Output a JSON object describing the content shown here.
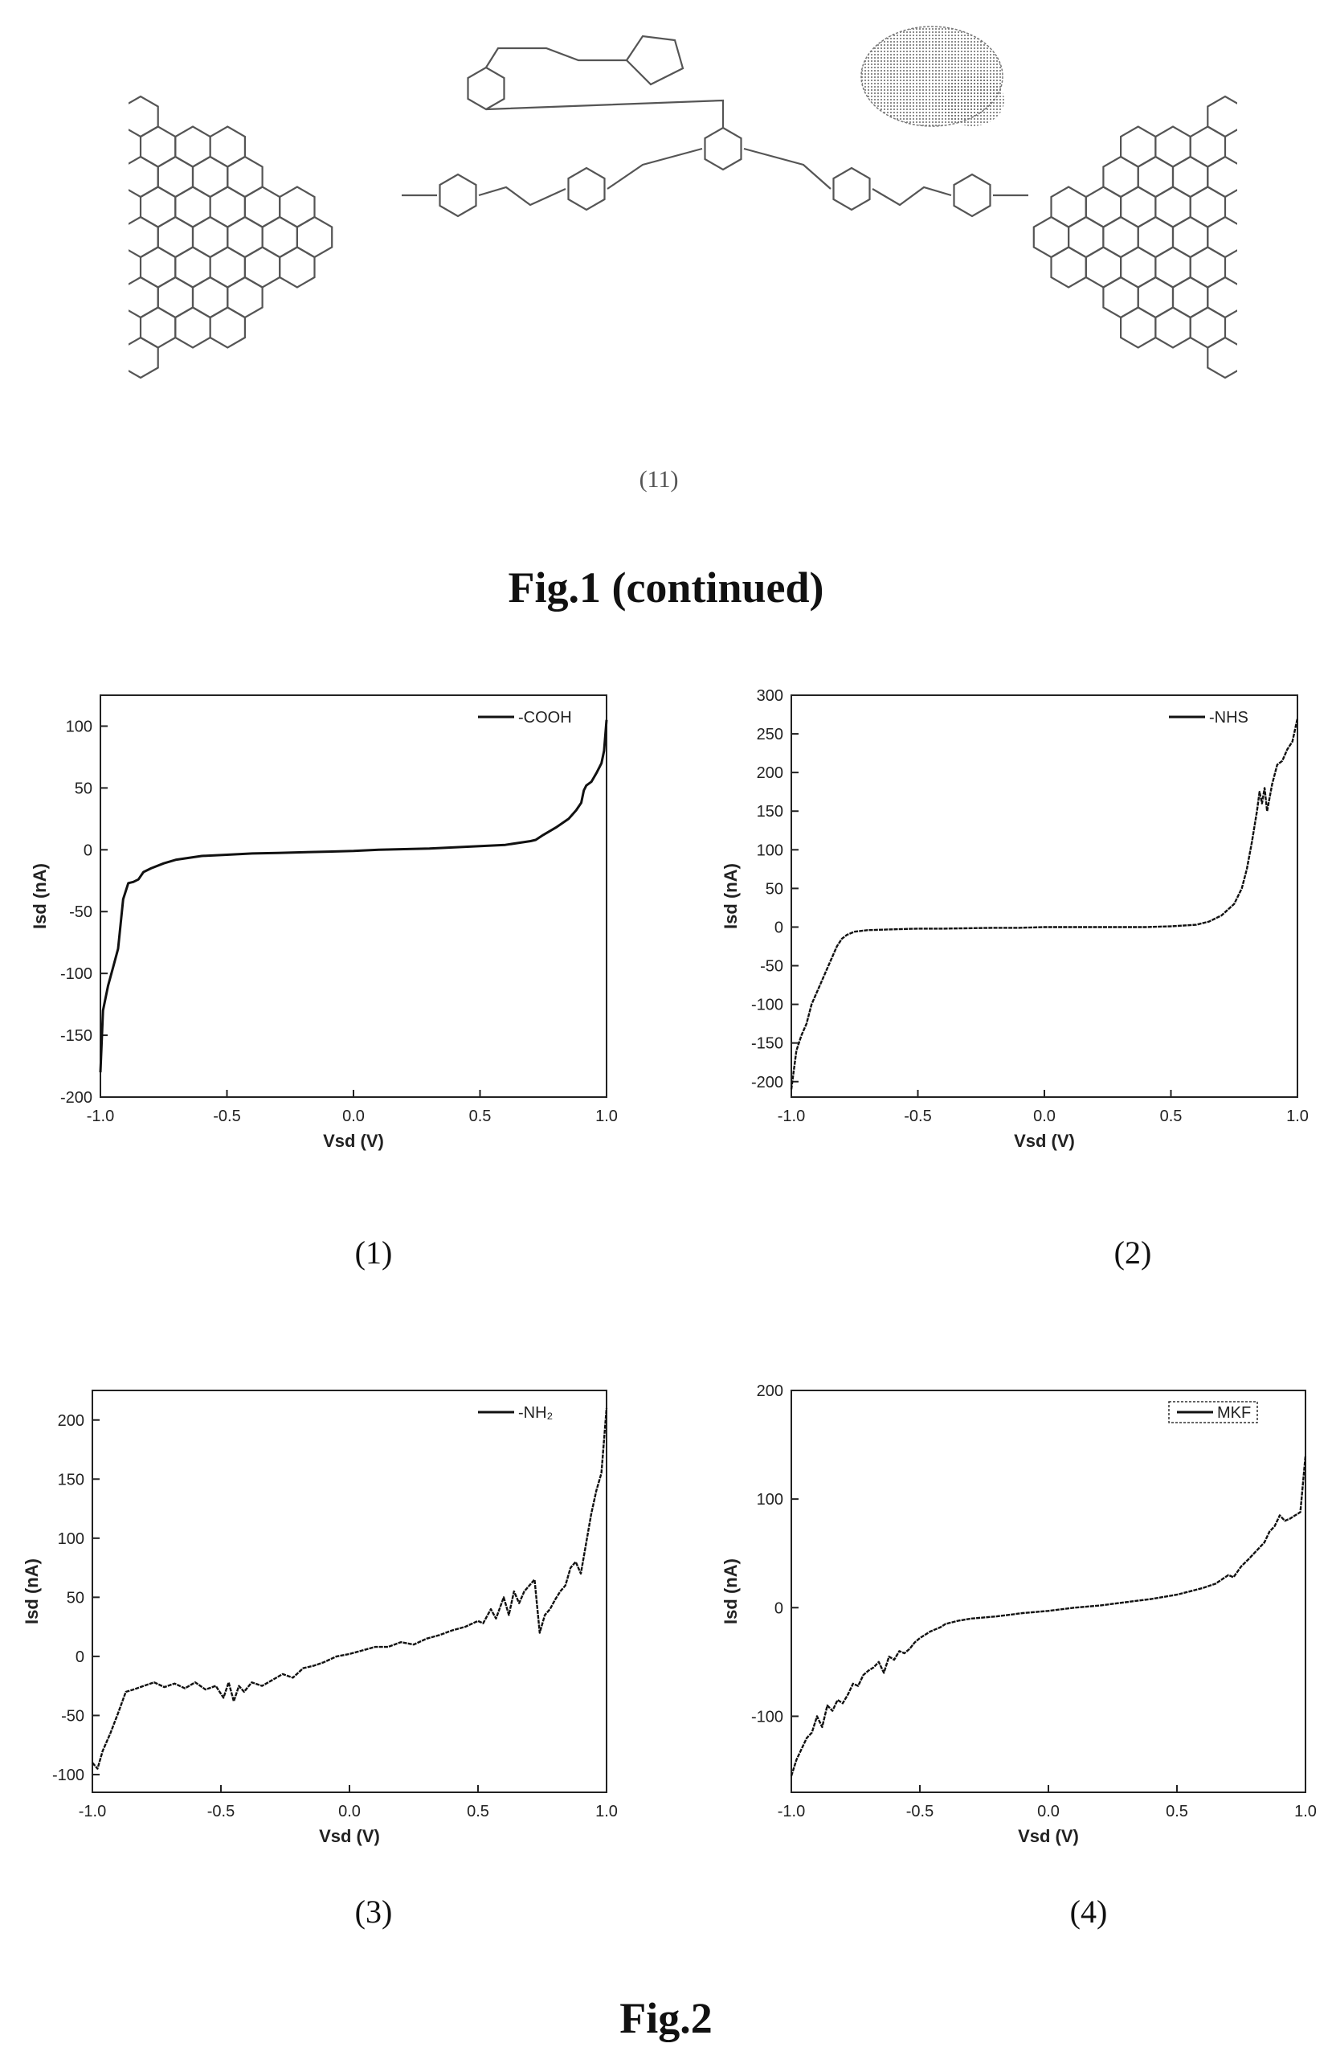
{
  "top_figure": {
    "compound_label": "(11)",
    "caption": "Fig.1 (continued)"
  },
  "bottom_figure": {
    "caption": "Fig.2"
  },
  "chart_data": [
    {
      "panel_label": "(1)",
      "type": "line",
      "xlabel": "Vsd (V)",
      "ylabel": "Isd (nA)",
      "xlim": [
        -1.0,
        1.0
      ],
      "ylim": [
        -200,
        125
      ],
      "xticks": [
        "-1.0",
        "-0.5",
        "0.0",
        "0.5",
        "1.0"
      ],
      "xtick_values": [
        -1.0,
        -0.5,
        0.0,
        0.5,
        1.0
      ],
      "yticks": [
        "-200",
        "-150",
        "-100",
        "-50",
        "0",
        "50",
        "100"
      ],
      "ytick_values": [
        -200,
        -150,
        -100,
        -50,
        0,
        50,
        100
      ],
      "legend_position": "top-right",
      "series": [
        {
          "name": "-COOH",
          "x": [
            -1.0,
            -0.99,
            -0.97,
            -0.95,
            -0.93,
            -0.91,
            -0.89,
            -0.87,
            -0.85,
            -0.83,
            -0.8,
            -0.75,
            -0.7,
            -0.6,
            -0.5,
            -0.4,
            -0.3,
            -0.2,
            -0.1,
            0.0,
            0.1,
            0.2,
            0.3,
            0.4,
            0.5,
            0.6,
            0.7,
            0.72,
            0.75,
            0.8,
            0.85,
            0.88,
            0.9,
            0.91,
            0.92,
            0.94,
            0.96,
            0.98,
            0.99,
            1.0
          ],
          "y": [
            -180,
            -130,
            -110,
            -95,
            -80,
            -40,
            -27,
            -26,
            -24,
            -18,
            -15,
            -11,
            -8,
            -5,
            -4,
            -3,
            -2.5,
            -2,
            -1.5,
            -1,
            0,
            0.5,
            1,
            2,
            3,
            4,
            7,
            8,
            12,
            18,
            25,
            32,
            38,
            48,
            52,
            55,
            62,
            70,
            80,
            105
          ]
        }
      ]
    },
    {
      "panel_label": "(2)",
      "type": "line",
      "xlabel": "Vsd (V)",
      "ylabel": "Isd (nA)",
      "xlim": [
        -1.0,
        1.0
      ],
      "ylim": [
        -220,
        300
      ],
      "xticks": [
        "-1.0",
        "-0.5",
        "0.0",
        "0.5",
        "1.0"
      ],
      "xtick_values": [
        -1.0,
        -0.5,
        0.0,
        0.5,
        1.0
      ],
      "yticks": [
        "-200",
        "-150",
        "-100",
        "-50",
        "0",
        "50",
        "100",
        "150",
        "200",
        "250",
        "300"
      ],
      "ytick_values": [
        -200,
        -150,
        -100,
        -50,
        0,
        50,
        100,
        150,
        200,
        250,
        300
      ],
      "legend_position": "top-right",
      "series": [
        {
          "name": "-NHS",
          "x": [
            -1.0,
            -0.98,
            -0.96,
            -0.94,
            -0.92,
            -0.9,
            -0.88,
            -0.86,
            -0.84,
            -0.82,
            -0.8,
            -0.78,
            -0.75,
            -0.7,
            -0.6,
            -0.5,
            -0.4,
            -0.3,
            -0.2,
            -0.1,
            0.0,
            0.1,
            0.2,
            0.3,
            0.4,
            0.5,
            0.6,
            0.65,
            0.7,
            0.75,
            0.78,
            0.8,
            0.82,
            0.84,
            0.85,
            0.86,
            0.87,
            0.88,
            0.9,
            0.92,
            0.94,
            0.96,
            0.98,
            1.0
          ],
          "y": [
            -210,
            -160,
            -140,
            -125,
            -100,
            -85,
            -70,
            -55,
            -40,
            -25,
            -15,
            -10,
            -6,
            -4,
            -3,
            -2,
            -2,
            -1.5,
            -1,
            -1,
            0,
            0,
            0,
            0,
            0,
            1,
            3,
            7,
            15,
            30,
            50,
            75,
            110,
            150,
            175,
            160,
            180,
            150,
            185,
            210,
            215,
            230,
            240,
            270
          ]
        }
      ]
    },
    {
      "panel_label": "(3)",
      "type": "line",
      "xlabel": "Vsd (V)",
      "ylabel": "Isd (nA)",
      "xlim": [
        -1.0,
        1.0
      ],
      "ylim": [
        -115,
        225
      ],
      "xticks": [
        "-1.0",
        "-0.5",
        "0.0",
        "0.5",
        "1.0"
      ],
      "xtick_values": [
        -1.0,
        -0.5,
        0.0,
        0.5,
        1.0
      ],
      "yticks": [
        "-100",
        "-50",
        "0",
        "50",
        "100",
        "150",
        "200"
      ],
      "ytick_values": [
        -100,
        -50,
        0,
        50,
        100,
        150,
        200
      ],
      "legend_position": "top-right",
      "series": [
        {
          "name": "-NH₂",
          "x": [
            -1.0,
            -0.98,
            -0.96,
            -0.93,
            -0.9,
            -0.87,
            -0.84,
            -0.8,
            -0.76,
            -0.72,
            -0.68,
            -0.64,
            -0.6,
            -0.56,
            -0.52,
            -0.49,
            -0.47,
            -0.45,
            -0.43,
            -0.41,
            -0.38,
            -0.34,
            -0.3,
            -0.26,
            -0.22,
            -0.18,
            -0.14,
            -0.1,
            -0.05,
            0.0,
            0.05,
            0.1,
            0.15,
            0.2,
            0.25,
            0.3,
            0.35,
            0.4,
            0.45,
            0.5,
            0.52,
            0.55,
            0.57,
            0.6,
            0.62,
            0.64,
            0.66,
            0.68,
            0.7,
            0.72,
            0.74,
            0.76,
            0.78,
            0.8,
            0.82,
            0.84,
            0.86,
            0.88,
            0.9,
            0.92,
            0.94,
            0.96,
            0.98,
            1.0
          ],
          "y": [
            -90,
            -95,
            -80,
            -65,
            -48,
            -30,
            -28,
            -25,
            -22,
            -26,
            -23,
            -27,
            -22,
            -28,
            -25,
            -35,
            -22,
            -38,
            -25,
            -30,
            -22,
            -25,
            -20,
            -15,
            -18,
            -10,
            -8,
            -5,
            0,
            2,
            5,
            8,
            8,
            12,
            10,
            15,
            18,
            22,
            25,
            30,
            28,
            40,
            32,
            50,
            35,
            55,
            45,
            55,
            60,
            65,
            20,
            35,
            40,
            48,
            55,
            60,
            75,
            80,
            70,
            95,
            120,
            140,
            155,
            210
          ]
        }
      ]
    },
    {
      "panel_label": "(4)",
      "type": "line",
      "xlabel": "Vsd (V)",
      "ylabel": "Isd (nA)",
      "xlim": [
        -1.0,
        1.0
      ],
      "ylim": [
        -170,
        200
      ],
      "xticks": [
        "-1.0",
        "-0.5",
        "0.0",
        "0.5",
        "1.0"
      ],
      "xtick_values": [
        -1.0,
        -0.5,
        0.0,
        0.5,
        1.0
      ],
      "yticks": [
        "-100",
        "0",
        "100",
        "200"
      ],
      "ytick_values": [
        -100,
        0,
        100,
        200
      ],
      "legend_position": "top-right",
      "series": [
        {
          "name": "MKF",
          "x": [
            -1.0,
            -0.98,
            -0.96,
            -0.94,
            -0.92,
            -0.9,
            -0.88,
            -0.86,
            -0.84,
            -0.82,
            -0.8,
            -0.78,
            -0.76,
            -0.74,
            -0.72,
            -0.7,
            -0.68,
            -0.66,
            -0.64,
            -0.62,
            -0.6,
            -0.58,
            -0.56,
            -0.54,
            -0.52,
            -0.5,
            -0.48,
            -0.46,
            -0.44,
            -0.42,
            -0.4,
            -0.35,
            -0.3,
            -0.2,
            -0.1,
            0.0,
            0.1,
            0.2,
            0.3,
            0.4,
            0.5,
            0.6,
            0.65,
            0.7,
            0.72,
            0.75,
            0.78,
            0.8,
            0.82,
            0.84,
            0.86,
            0.88,
            0.9,
            0.92,
            0.94,
            0.96,
            0.98,
            1.0
          ],
          "y": [
            -155,
            -140,
            -130,
            -120,
            -115,
            -100,
            -110,
            -90,
            -95,
            -85,
            -88,
            -80,
            -70,
            -72,
            -62,
            -58,
            -55,
            -50,
            -60,
            -45,
            -48,
            -40,
            -42,
            -38,
            -32,
            -28,
            -25,
            -22,
            -20,
            -18,
            -15,
            -12,
            -10,
            -8,
            -5,
            -3,
            0,
            2,
            5,
            8,
            12,
            18,
            22,
            30,
            28,
            38,
            45,
            50,
            55,
            60,
            70,
            75,
            85,
            80,
            82,
            85,
            88,
            140
          ]
        }
      ]
    }
  ]
}
